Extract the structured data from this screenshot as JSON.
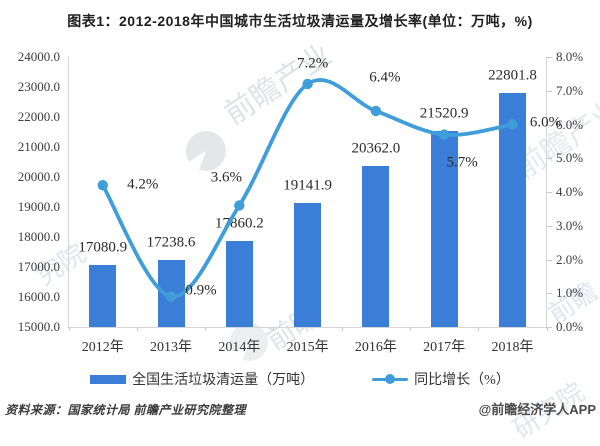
{
  "title": "图表1：2012-2018年中国城市生活垃圾清运量及增长率(单位：万吨，%)",
  "chart_data": {
    "type": "bar+line",
    "title": "图表1：2012-2018年中国城市生活垃圾清运量及增长率(单位：万吨，%)",
    "categories": [
      "2012年",
      "2013年",
      "2014年",
      "2015年",
      "2016年",
      "2017年",
      "2018年"
    ],
    "series": [
      {
        "name": "全国生活垃圾清运量（万吨）",
        "type": "bar",
        "axis": "left",
        "color": "#3b7ed8",
        "values": [
          17080.9,
          17238.6,
          17860.2,
          19141.9,
          20362.0,
          21520.9,
          22801.8
        ],
        "labels": [
          "17080.9",
          "17238.6",
          "17860.2",
          "19141.9",
          "20362.0",
          "21520.9",
          "22801.8"
        ]
      },
      {
        "name": "同比增长（%）",
        "type": "line",
        "axis": "right",
        "color": "#3f9ed9",
        "values": [
          4.2,
          0.9,
          3.6,
          7.2,
          6.4,
          5.7,
          6.0
        ],
        "labels": [
          "4.2%",
          "0.9%",
          "3.6%",
          "7.2%",
          "6.4%",
          "5.7%",
          "6.0%"
        ]
      }
    ],
    "left_axis": {
      "min": 15000,
      "max": 24000,
      "step": 1000,
      "tick_labels": [
        "15000.0",
        "16000.0",
        "17000.0",
        "18000.0",
        "19000.0",
        "20000.0",
        "21000.0",
        "22000.0",
        "23000.0",
        "24000.0"
      ]
    },
    "right_axis": {
      "min": 0,
      "max": 8,
      "step": 1,
      "suffix": "%",
      "tick_labels": [
        "0.0%",
        "1.0%",
        "2.0%",
        "3.0%",
        "4.0%",
        "5.0%",
        "6.0%",
        "7.0%",
        "8.0%"
      ]
    },
    "grid": false,
    "legend_position": "bottom"
  },
  "legend": {
    "items": [
      {
        "label": "全国生活垃圾清运量（万吨）",
        "marker": "bar"
      },
      {
        "label": "同比增长（%）",
        "marker": "line"
      }
    ]
  },
  "footer": {
    "source": "资料来源：国家统计局 前瞻产业研究院整理",
    "credit": "@前瞻经济学人APP"
  },
  "watermarks": {
    "items": [
      {
        "text": "前瞻产业"
      },
      {
        "text": "前瞻产业研究院"
      },
      {
        "text": "前瞻"
      },
      {
        "text": "前瞻"
      },
      {
        "text": "研究院"
      },
      {
        "text": "究院"
      }
    ]
  }
}
